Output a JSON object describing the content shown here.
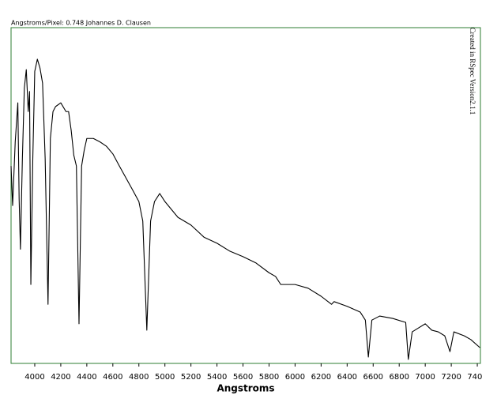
{
  "chart_data": {
    "type": "line",
    "title": "Angstroms/Pixel: 0.748 Johannes D. Clausen",
    "annotation": "Created in RSpec Version2.1.1",
    "x_label": "Angstroms",
    "color": "#000000",
    "frame_color": "#2e7d32",
    "xlim": [
      3818,
      7424
    ],
    "ylim": [
      0,
      100
    ],
    "xticks": [
      4000,
      4200,
      4400,
      4600,
      4800,
      5000,
      5200,
      5400,
      5600,
      5800,
      6000,
      6200,
      6400,
      6600,
      6800,
      7000,
      7200,
      7400
    ],
    "x": [
      3818,
      3830,
      3850,
      3870,
      3880,
      3890,
      3905,
      3920,
      3935,
      3950,
      3960,
      3970,
      3985,
      4000,
      4020,
      4040,
      4060,
      4080,
      4102,
      4120,
      4140,
      4160,
      4200,
      4240,
      4260,
      4280,
      4300,
      4320,
      4340,
      4360,
      4380,
      4400,
      4450,
      4500,
      4550,
      4600,
      4650,
      4700,
      4750,
      4800,
      4830,
      4861,
      4890,
      4920,
      4960,
      5000,
      5100,
      5200,
      5300,
      5400,
      5500,
      5600,
      5700,
      5800,
      5850,
      5890,
      5950,
      6000,
      6100,
      6200,
      6280,
      6300,
      6400,
      6500,
      6540,
      6563,
      6590,
      6650,
      6750,
      6850,
      6870,
      6900,
      6950,
      7000,
      7050,
      7100,
      7150,
      7190,
      7220,
      7300,
      7350,
      7420
    ],
    "values": [
      58.8,
      47,
      66,
      77.6,
      49,
      34,
      61,
      82,
      87.5,
      75,
      81,
      23.5,
      61,
      87,
      90.6,
      88,
      83.5,
      61,
      17.6,
      67,
      75,
      76.5,
      77.6,
      75,
      75,
      69.4,
      62,
      58.8,
      11.8,
      58.8,
      63.5,
      67,
      67,
      66,
      64.7,
      62.4,
      58.8,
      55.3,
      51.8,
      48.2,
      42.4,
      9.9,
      42.4,
      48.2,
      50.6,
      48.2,
      43.5,
      41.2,
      37.6,
      35.8,
      33.4,
      31.8,
      29.9,
      27,
      25.9,
      23.5,
      23.5,
      23.5,
      22.4,
      20,
      17.6,
      18.4,
      17,
      15.3,
      12.9,
      1.9,
      12.9,
      14.1,
      13.4,
      12.2,
      1.2,
      9.4,
      10.6,
      11.8,
      9.9,
      9.4,
      8.2,
      3.5,
      9.4,
      8.2,
      7.1,
      4.7
    ]
  }
}
